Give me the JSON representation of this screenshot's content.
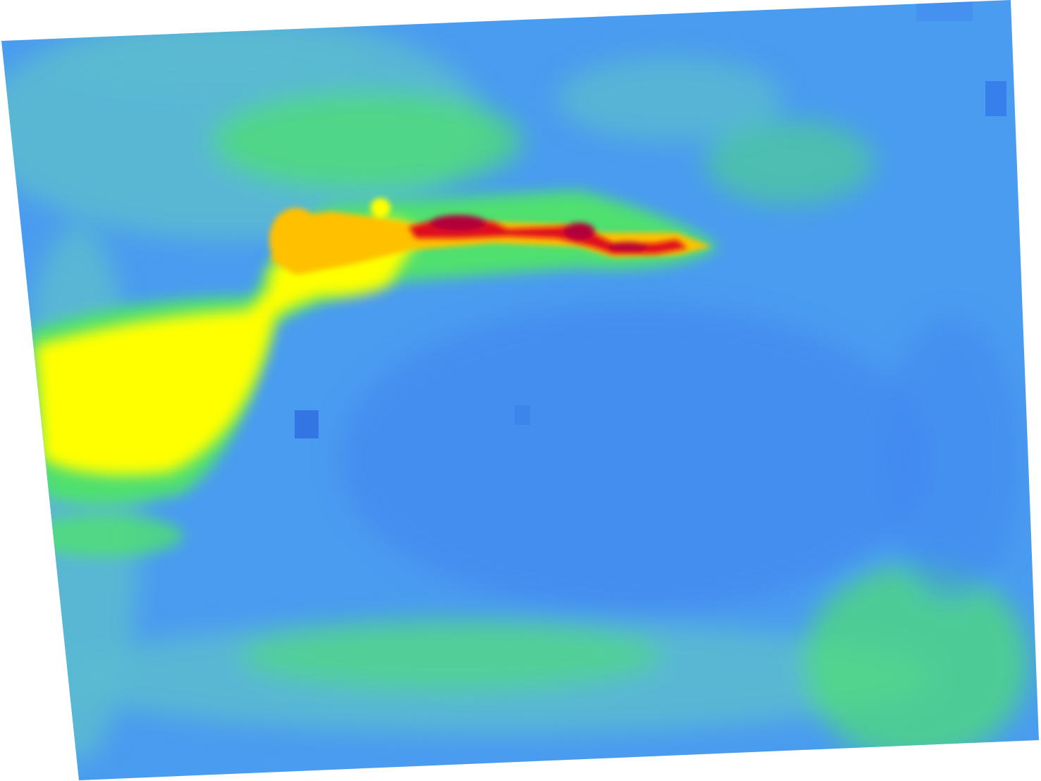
{
  "map": {
    "layer_type": "raster-heatmap",
    "colormap": [
      "#3f86f0",
      "#4a9cf0",
      "#5bbad0",
      "#4fe070",
      "#c8f04a",
      "#ffff00",
      "#ffc000",
      "#ff6a00",
      "#e0101a",
      "#b0003a"
    ],
    "background_color": "#ffffff",
    "projection": "tilted-raster"
  }
}
